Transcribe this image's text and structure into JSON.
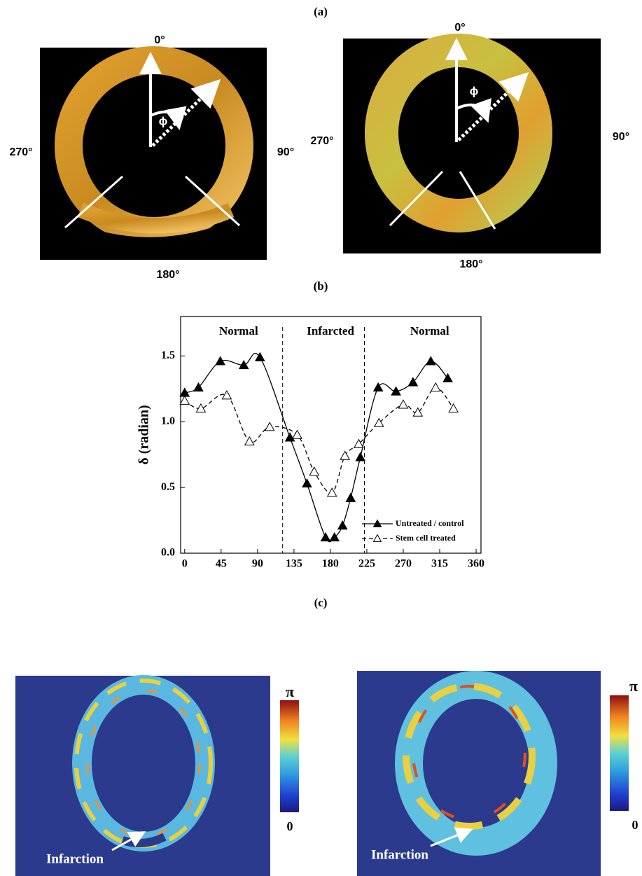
{
  "panel_labels": [
    "(a)",
    "(b)",
    "(c)"
  ],
  "panel_a": {
    "left": {
      "top": "0°",
      "right": "90°",
      "bottom": "180°",
      "left": "270°",
      "angle": "ϕ"
    },
    "right": {
      "top": "0°",
      "right": "90°",
      "bottom": "180°",
      "left": "270°",
      "angle": "ϕ"
    }
  },
  "chart_data": {
    "type": "line",
    "ylabel": "δ (radian)",
    "regions": [
      "Normal",
      "Infarcted",
      "Normal"
    ],
    "dividers": [
      121,
      222
    ],
    "xlim": [
      -5,
      366
    ],
    "xticks": [
      0,
      45,
      90,
      135,
      180,
      225,
      270,
      315,
      360
    ],
    "ylim": [
      0,
      1.8
    ],
    "yticks": [
      {
        "value": 0,
        "label": "0.0"
      },
      0.5,
      {
        "value": 1,
        "label": "1.0"
      },
      1.5
    ],
    "legend": "lower right",
    "series": [
      {
        "name": "Untreated / control",
        "color": "#000000",
        "line_style": "solid",
        "marker": "filled",
        "x": [
          0,
          17,
          44,
          73,
          93,
          130,
          151,
          174,
          185,
          195,
          205,
          217,
          239,
          261,
          282,
          304,
          325
        ],
        "values": [
          1.22,
          1.26,
          1.46,
          1.43,
          1.49,
          0.88,
          0.53,
          0.12,
          0.12,
          0.21,
          0.42,
          0.73,
          1.26,
          1.23,
          1.3,
          1.46,
          1.33
        ]
      },
      {
        "name": "Stem cell treated",
        "color": "#000000",
        "line_style": "dashed",
        "marker": "open",
        "x": [
          0,
          20,
          52,
          80,
          105,
          139,
          160,
          182,
          198,
          215,
          240,
          270,
          288,
          310,
          332
        ],
        "values": [
          1.16,
          1.1,
          1.2,
          0.85,
          0.96,
          0.9,
          0.62,
          0.46,
          0.74,
          0.83,
          0.99,
          1.13,
          1.07,
          1.26,
          1.1
        ]
      }
    ]
  },
  "panel_c": {
    "left": {
      "colorbar_max": "π",
      "colorbar_min": "0",
      "annotation": "Infarction"
    },
    "right": {
      "colorbar_max": "π",
      "colorbar_min": "0",
      "annotation": "Infarction"
    }
  }
}
